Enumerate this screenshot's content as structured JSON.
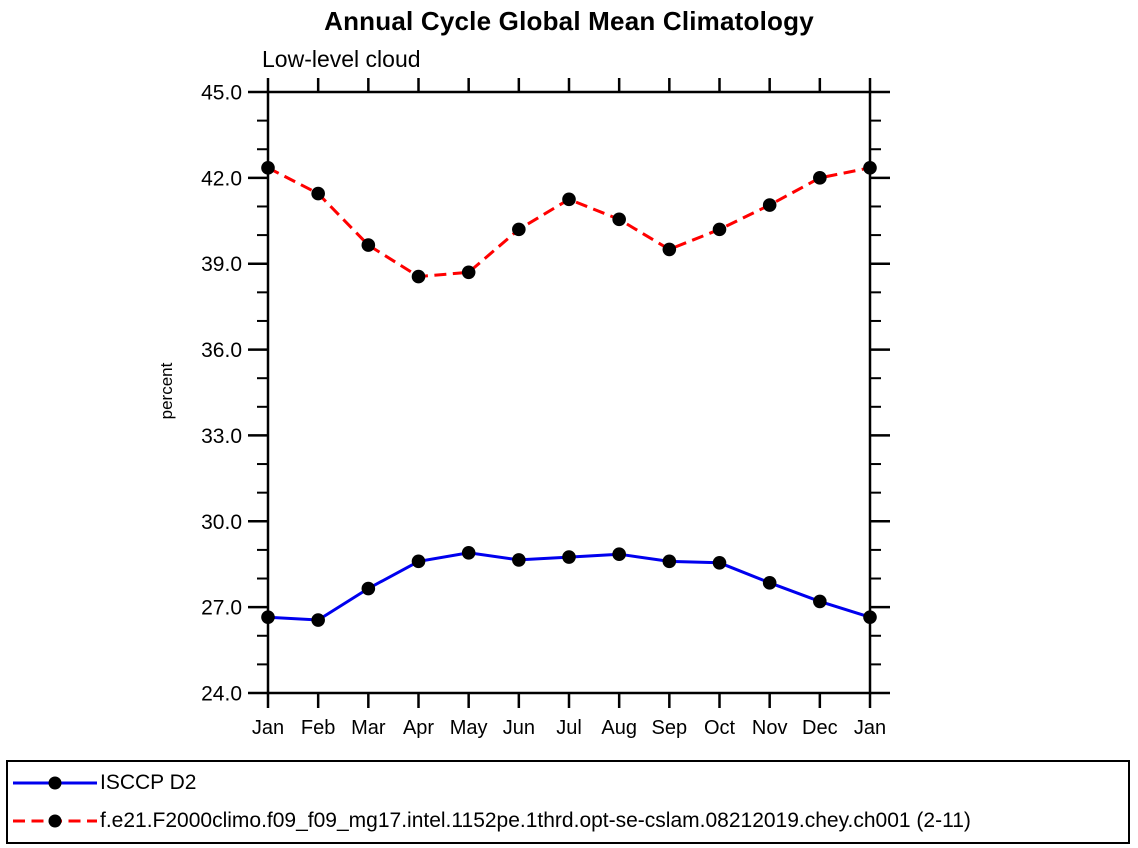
{
  "page": {
    "title": "Annual Cycle Global Mean Climatology",
    "subtitle": "Low-level cloud"
  },
  "chart_data": {
    "type": "line",
    "title": "Annual Cycle Global Mean Climatology",
    "subtitle": "Low-level cloud",
    "xlabel": "",
    "ylabel": "percent",
    "categories": [
      "Jan",
      "Feb",
      "Mar",
      "Apr",
      "May",
      "Jun",
      "Jul",
      "Aug",
      "Sep",
      "Oct",
      "Nov",
      "Dec",
      "Jan"
    ],
    "ylim": [
      24.0,
      45.0
    ],
    "y_major_tick_labels": [
      "45.0",
      "42.0",
      "39.0",
      "36.0",
      "33.0",
      "30.0",
      "27.0",
      "24.0"
    ],
    "y_major_tick_values": [
      45,
      42,
      39,
      36,
      33,
      30,
      27,
      24
    ],
    "y_minor_step": 1.0,
    "grid": false,
    "legend_position": "bottom-left-box",
    "axis_color": "#000000",
    "marker_color": "#000000",
    "series": [
      {
        "name": "ISCCP D2",
        "color": "#0000ee",
        "style": "solid",
        "marker": "filled-circle",
        "values": [
          26.65,
          26.55,
          27.65,
          28.6,
          28.9,
          28.65,
          28.75,
          28.85,
          28.6,
          28.55,
          27.85,
          27.2,
          26.65
        ]
      },
      {
        "name": "f.e21.F2000climo.f09_f09_mg17.intel.1152pe.1thrd.opt-se-cslam.08212019.chey.ch001 (2-11)",
        "color": "#ff0000",
        "style": "dashed",
        "marker": "filled-circle",
        "values": [
          42.35,
          41.45,
          39.65,
          38.55,
          38.7,
          40.2,
          41.25,
          40.55,
          39.5,
          40.2,
          41.05,
          42.0,
          42.35
        ]
      }
    ]
  }
}
